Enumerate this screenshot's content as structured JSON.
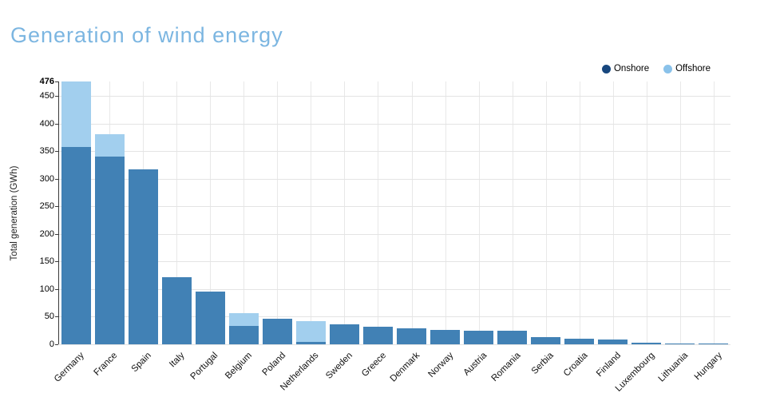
{
  "page": {
    "title": "Generation of wind energy"
  },
  "legend": {
    "items": [
      {
        "label": "Onshore",
        "dot_color": "#17477e"
      },
      {
        "label": "Offshore",
        "dot_color": "#8ac2ea"
      }
    ]
  },
  "chart_data": {
    "type": "bar",
    "stacked": true,
    "title": "Generation of wind energy",
    "title_color": "#7cb6e1",
    "xlabel": "",
    "ylabel": "Total generation (GWh)",
    "ylim": [
      0,
      476
    ],
    "yticks": [
      0,
      50,
      100,
      150,
      200,
      250,
      300,
      350,
      400,
      450
    ],
    "ymax_tick": 476,
    "grid": true,
    "legend_position": "top-right",
    "categories": [
      "Germany",
      "France",
      "Spain",
      "Italy",
      "Portugal",
      "Belgium",
      "Poland",
      "Netherlands",
      "Sweden",
      "Greece",
      "Denmark",
      "Norway",
      "Austria",
      "Romania",
      "Serbia",
      "Croatia",
      "Finland",
      "Luxembourg",
      "Lithuania",
      "Hungary"
    ],
    "series": [
      {
        "name": "Onshore",
        "bar_color": "#4181b5",
        "legend_color": "#17477e",
        "values": [
          358,
          340,
          317,
          121,
          95,
          33,
          46,
          4,
          36,
          32,
          29,
          26,
          25,
          24,
          13,
          10,
          9,
          3,
          2,
          1
        ]
      },
      {
        "name": "Offshore",
        "bar_color": "#a2cfee",
        "legend_color": "#8ac2ea",
        "values": [
          118,
          40,
          0,
          0,
          0,
          24,
          0,
          38,
          0,
          0,
          0,
          0,
          0,
          0,
          0,
          0,
          0,
          0,
          0,
          0
        ]
      }
    ]
  }
}
